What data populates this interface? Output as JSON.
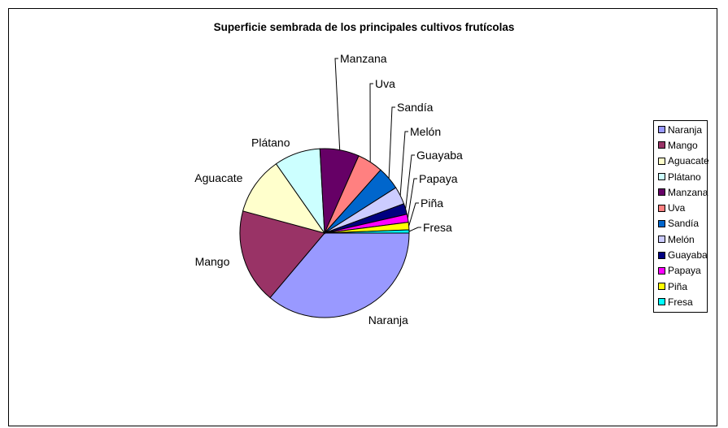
{
  "chart_data": {
    "type": "pie",
    "title": "Superficie sembrada de los principales cultivos frutícolas",
    "categories": [
      "Naranja",
      "Mango",
      "Aguacate",
      "Plátano",
      "Manzana",
      "Uva",
      "Sandía",
      "Melón",
      "Guayaba",
      "Papaya",
      "Piña",
      "Fresa"
    ],
    "values": [
      35.2,
      17.6,
      10.8,
      8.6,
      7.3,
      4.8,
      4.3,
      3.3,
      2.0,
      1.5,
      1.4,
      0.6
    ],
    "colors": [
      "#9999ff",
      "#993366",
      "#ffffcc",
      "#ccffff",
      "#660066",
      "#ff8080",
      "#0066cc",
      "#ccccff",
      "#000080",
      "#ff00ff",
      "#ffff00",
      "#00ffff"
    ],
    "legend_position": "right"
  }
}
